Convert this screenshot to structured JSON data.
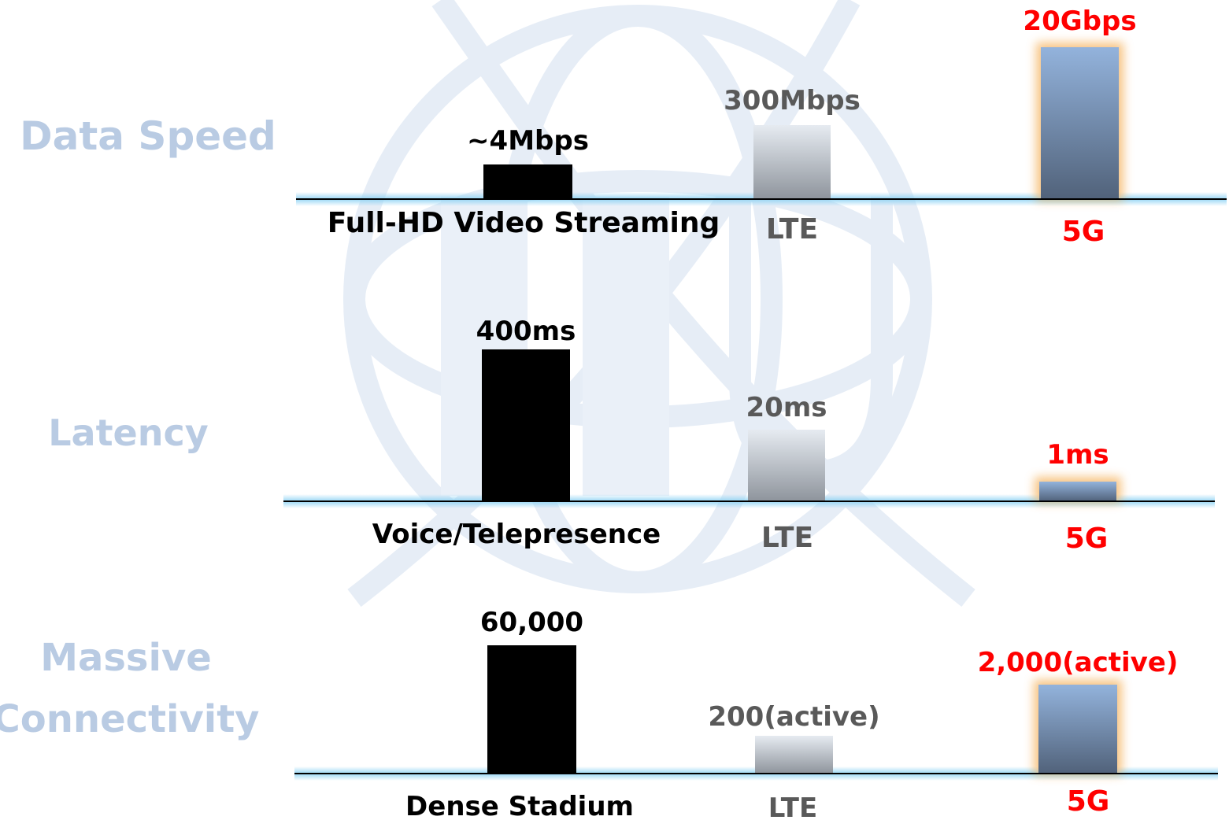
{
  "colors": {
    "row_title": "#b9cbe3",
    "baseline": "#000000",
    "baseline_glow": "#8fd3f4",
    "reference": "#000000",
    "lte_text": "#595959",
    "fiveg_text": "#ff0000",
    "watermark": "#e4ecf6"
  },
  "chart_data": [
    {
      "type": "bar",
      "title": "Data Speed",
      "categories": [
        "Full-HD Video Streaming",
        "LTE",
        "5G"
      ],
      "value_labels": [
        "~4Mbps",
        "300Mbps",
        "20Gbps"
      ],
      "values": [
        4,
        300,
        20000
      ],
      "units": "Mbps",
      "scale": "nonlinear"
    },
    {
      "type": "bar",
      "title": "Latency",
      "categories": [
        "Voice/Telepresence",
        "LTE",
        "5G"
      ],
      "value_labels": [
        "400ms",
        "20ms",
        "1ms"
      ],
      "values": [
        400,
        20,
        1
      ],
      "units": "ms",
      "scale": "nonlinear"
    },
    {
      "type": "bar",
      "title_lines": [
        "Massive",
        "Connectivity"
      ],
      "categories": [
        "Dense Stadium",
        "LTE",
        "5G"
      ],
      "value_labels": [
        "60,000",
        "200(active)",
        "2,000(active)"
      ],
      "values": [
        60000,
        200,
        2000
      ],
      "scale": "nonlinear"
    }
  ]
}
